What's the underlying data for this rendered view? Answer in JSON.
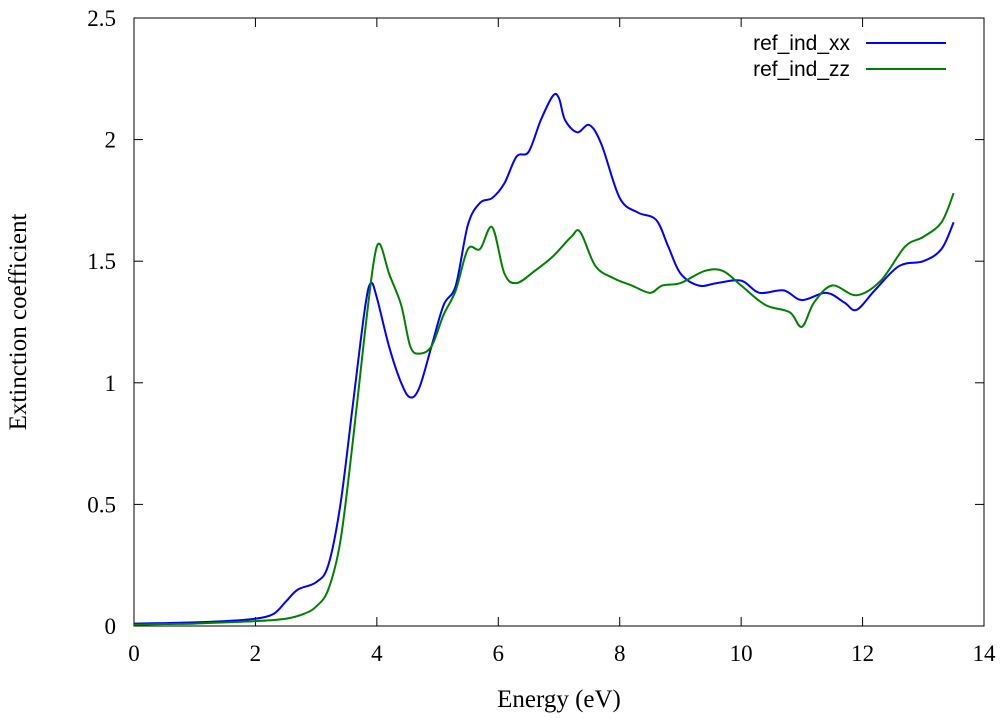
{
  "chart_data": {
    "type": "line",
    "title": "",
    "xlabel": "Energy (eV)",
    "ylabel": "Extinction coefficient",
    "xlim": [
      0,
      14
    ],
    "ylim": [
      0,
      2.5
    ],
    "x_ticks": [
      0,
      2,
      4,
      6,
      8,
      10,
      12,
      14
    ],
    "y_ticks": [
      0,
      0.5,
      1,
      1.5,
      2,
      2.5
    ],
    "x_tick_labels": [
      "0",
      "2",
      "4",
      "6",
      "8",
      "10",
      "12",
      "14"
    ],
    "y_tick_labels": [
      "0",
      "0.5",
      "1",
      "1.5",
      "2",
      "2.5"
    ],
    "grid": false,
    "legend_position": "top-right",
    "series": [
      {
        "name": "ref_ind_xx",
        "color": "#0000ff",
        "x": [
          0,
          0.5,
          1,
          1.5,
          2,
          2.3,
          2.5,
          2.7,
          3.0,
          3.2,
          3.4,
          3.6,
          3.8,
          3.9,
          4.0,
          4.2,
          4.4,
          4.55,
          4.7,
          4.9,
          5.1,
          5.3,
          5.5,
          5.7,
          5.9,
          6.1,
          6.3,
          6.5,
          6.7,
          6.9,
          7.0,
          7.1,
          7.3,
          7.5,
          7.7,
          8.0,
          8.3,
          8.6,
          8.8,
          9.0,
          9.3,
          9.6,
          10.0,
          10.3,
          10.7,
          11.0,
          11.4,
          11.7,
          11.9,
          12.2,
          12.6,
          13.0,
          13.3,
          13.5
        ],
        "y": [
          0.01,
          0.012,
          0.015,
          0.02,
          0.03,
          0.05,
          0.1,
          0.15,
          0.18,
          0.25,
          0.5,
          0.9,
          1.3,
          1.41,
          1.35,
          1.15,
          1.0,
          0.94,
          0.98,
          1.15,
          1.32,
          1.4,
          1.65,
          1.74,
          1.76,
          1.82,
          1.93,
          1.95,
          2.08,
          2.18,
          2.17,
          2.08,
          2.03,
          2.06,
          1.98,
          1.76,
          1.7,
          1.67,
          1.56,
          1.45,
          1.4,
          1.41,
          1.42,
          1.37,
          1.38,
          1.34,
          1.37,
          1.33,
          1.3,
          1.38,
          1.48,
          1.5,
          1.55,
          1.66
        ]
      },
      {
        "name": "ref_ind_zz",
        "color": "#008000",
        "x": [
          0,
          0.5,
          1,
          1.5,
          2,
          2.5,
          2.8,
          3.0,
          3.2,
          3.4,
          3.6,
          3.8,
          3.95,
          4.05,
          4.2,
          4.4,
          4.55,
          4.7,
          4.9,
          5.1,
          5.3,
          5.5,
          5.7,
          5.9,
          6.1,
          6.3,
          6.6,
          6.9,
          7.2,
          7.35,
          7.6,
          7.9,
          8.2,
          8.5,
          8.7,
          9.0,
          9.4,
          9.7,
          10.0,
          10.4,
          10.8,
          11.0,
          11.2,
          11.5,
          11.9,
          12.3,
          12.7,
          13.0,
          13.3,
          13.5
        ],
        "y": [
          0.005,
          0.008,
          0.01,
          0.015,
          0.02,
          0.03,
          0.05,
          0.08,
          0.15,
          0.35,
          0.75,
          1.2,
          1.5,
          1.57,
          1.45,
          1.32,
          1.15,
          1.12,
          1.15,
          1.28,
          1.38,
          1.55,
          1.55,
          1.64,
          1.45,
          1.41,
          1.46,
          1.52,
          1.6,
          1.62,
          1.48,
          1.43,
          1.4,
          1.37,
          1.4,
          1.41,
          1.46,
          1.46,
          1.4,
          1.32,
          1.29,
          1.23,
          1.33,
          1.4,
          1.36,
          1.42,
          1.56,
          1.6,
          1.66,
          1.78
        ]
      }
    ]
  }
}
